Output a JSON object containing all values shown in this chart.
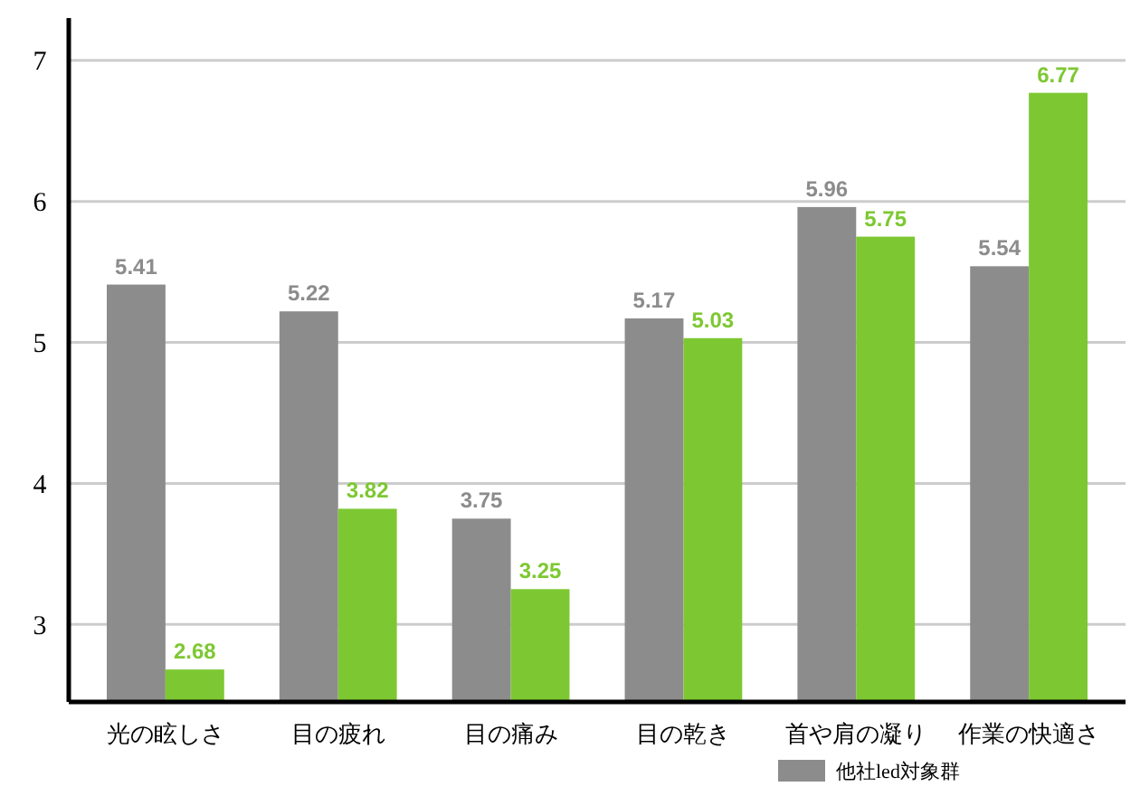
{
  "chart_data": {
    "type": "bar",
    "categories": [
      "光の眩しさ",
      "目の疲れ",
      "目の痛み",
      "目の乾き",
      "首や肩の凝り",
      "作業の快適さ"
    ],
    "series": [
      {
        "name": "他社led対象群",
        "color": "#8c8c8c",
        "values": [
          5.41,
          5.22,
          3.75,
          5.17,
          5.96,
          5.54
        ]
      },
      {
        "color": "#7dc832",
        "values": [
          2.68,
          3.82,
          3.25,
          5.03,
          5.75,
          6.77
        ]
      }
    ],
    "ylim": [
      2.45,
      7.3
    ],
    "yticks": [
      3,
      4,
      5,
      6,
      7
    ],
    "grid": "y",
    "legend": "bottom right",
    "data_labels": true
  }
}
